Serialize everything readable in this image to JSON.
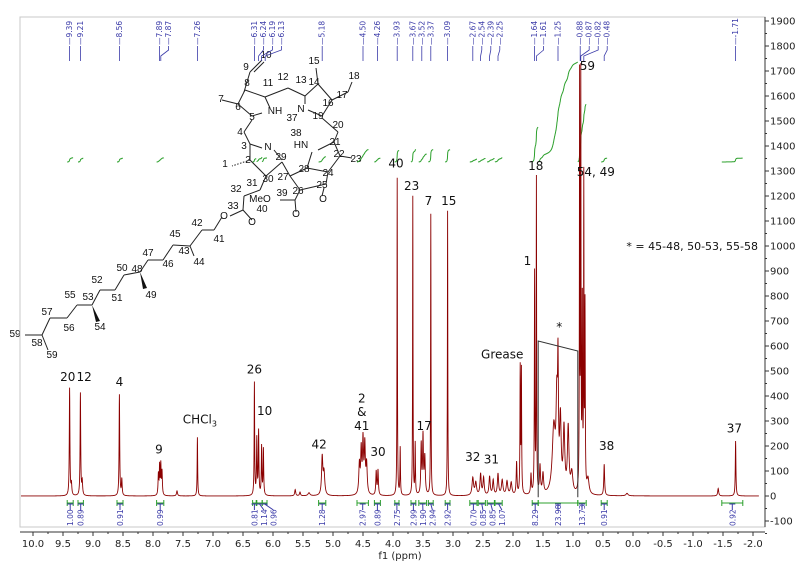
{
  "chart_data": {
    "type": "line",
    "xlabel": "f1 (ppm)",
    "ylabel": "",
    "xlim": [
      10.3,
      -2.1
    ],
    "ylim": [
      -100,
      1900
    ],
    "x_reversed": true,
    "grid": false,
    "xticks": [
      "10.0",
      "9.5",
      "9.0",
      "8.5",
      "8.0",
      "7.5",
      "7.0",
      "6.5",
      "6.0",
      "5.5",
      "5.0",
      "4.5",
      "4.0",
      "3.5",
      "3.0",
      "2.5",
      "2.0",
      "1.5",
      "1.0",
      "0.5",
      "0.0",
      "-0.5",
      "-1.0",
      "-1.5",
      "-2.0"
    ],
    "yticks": [
      "1900",
      "1800",
      "1700",
      "1600",
      "1500",
      "1400",
      "1300",
      "1200",
      "1100",
      "1000",
      "900",
      "800",
      "700",
      "600",
      "500",
      "400",
      "300",
      "200",
      "100",
      "0",
      "-100"
    ],
    "series_color": "#8b0000",
    "integral_color": "#2ca02c",
    "label_color": "#3a3aa8",
    "peaks": [
      [
        9.39,
        430,
        0.006
      ],
      [
        9.36,
        45,
        0.008
      ],
      [
        9.21,
        410,
        0.006
      ],
      [
        9.18,
        55,
        0.008
      ],
      [
        8.56,
        405,
        0.006
      ],
      [
        8.52,
        65,
        0.007
      ],
      [
        7.91,
        85,
        0.007
      ],
      [
        7.89,
        115,
        0.006
      ],
      [
        7.87,
        120,
        0.006
      ],
      [
        7.85,
        95,
        0.007
      ],
      [
        7.6,
        20,
        0.01
      ],
      [
        7.26,
        235,
        0.005
      ],
      [
        6.31,
        450,
        0.005
      ],
      [
        6.27,
        225,
        0.006
      ],
      [
        6.24,
        255,
        0.006
      ],
      [
        6.19,
        195,
        0.006
      ],
      [
        6.16,
        185,
        0.006
      ],
      [
        5.63,
        25,
        0.01
      ],
      [
        5.55,
        15,
        0.01
      ],
      [
        5.4,
        12,
        0.02
      ],
      [
        5.18,
        150,
        0.012
      ],
      [
        5.15,
        90,
        0.015
      ],
      [
        4.56,
        120,
        0.012
      ],
      [
        4.53,
        170,
        0.01
      ],
      [
        4.5,
        210,
        0.01
      ],
      [
        4.47,
        190,
        0.01
      ],
      [
        4.44,
        120,
        0.012
      ],
      [
        4.28,
        95,
        0.008
      ],
      [
        4.25,
        100,
        0.008
      ],
      [
        3.93,
        1270,
        0.004
      ],
      [
        3.88,
        190,
        0.005
      ],
      [
        3.67,
        1195,
        0.004
      ],
      [
        3.63,
        205,
        0.005
      ],
      [
        3.53,
        200,
        0.008
      ],
      [
        3.5,
        230,
        0.008
      ],
      [
        3.47,
        150,
        0.01
      ],
      [
        3.37,
        1125,
        0.004
      ],
      [
        3.09,
        1140,
        0.004
      ],
      [
        2.67,
        70,
        0.015
      ],
      [
        2.62,
        50,
        0.015
      ],
      [
        2.54,
        85,
        0.012
      ],
      [
        2.49,
        70,
        0.012
      ],
      [
        2.39,
        75,
        0.012
      ],
      [
        2.33,
        60,
        0.012
      ],
      [
        2.25,
        85,
        0.012
      ],
      [
        2.18,
        60,
        0.015
      ],
      [
        2.1,
        55,
        0.015
      ],
      [
        2.03,
        50,
        0.015
      ],
      [
        1.94,
        130,
        0.008
      ],
      [
        1.88,
        500,
        0.005
      ],
      [
        1.86,
        490,
        0.005
      ],
      [
        1.7,
        80,
        0.008
      ],
      [
        1.64,
        880,
        0.005
      ],
      [
        1.61,
        1250,
        0.004
      ],
      [
        1.55,
        110,
        0.01
      ],
      [
        1.5,
        80,
        0.012
      ],
      [
        1.32,
        260,
        0.03
      ],
      [
        1.27,
        330,
        0.015
      ],
      [
        1.25,
        430,
        0.008
      ],
      [
        1.21,
        280,
        0.015
      ],
      [
        1.15,
        250,
        0.015
      ],
      [
        1.08,
        260,
        0.015
      ],
      [
        1.02,
        80,
        0.02
      ],
      [
        0.89,
        1640,
        0.004
      ],
      [
        0.87,
        1620,
        0.004
      ],
      [
        0.845,
        760,
        0.005
      ],
      [
        0.82,
        1220,
        0.004
      ],
      [
        0.8,
        730,
        0.005
      ],
      [
        0.75,
        60,
        0.02
      ],
      [
        0.48,
        125,
        0.008
      ],
      [
        0.1,
        10,
        0.02
      ],
      [
        -1.42,
        30,
        0.01
      ],
      [
        -1.71,
        220,
        0.006
      ]
    ],
    "peak_labels": [
      "9.39",
      "9.21",
      "8.56",
      "7.89",
      "7.87",
      "7.26",
      "6.31",
      "6.24",
      "6.19",
      "6.13",
      "5.18",
      "4.50",
      "4.26",
      "3.93",
      "3.67",
      "3.52",
      "3.37",
      "3.09",
      "2.67",
      "2.54",
      "2.39",
      "2.25",
      "1.64",
      "1.61",
      "1.25",
      "0.88",
      "0.87",
      "0.82",
      "0.48",
      "-1.71"
    ],
    "integrals": [
      {
        "value": "1.00",
        "from": 9.43,
        "to": 9.33
      },
      {
        "value": "0.89",
        "from": 9.25,
        "to": 9.16
      },
      {
        "value": "0.91",
        "from": 8.6,
        "to": 8.5
      },
      {
        "value": "0.99",
        "from": 7.94,
        "to": 7.82
      },
      {
        "value": "0.81",
        "from": 6.34,
        "to": 6.28
      },
      {
        "value": "1.14",
        "from": 6.27,
        "to": 6.18
      },
      {
        "value": "0.96",
        "from": 6.18,
        "to": 6.1
      },
      {
        "value": "1.28",
        "from": 5.24,
        "to": 5.12
      },
      {
        "value": "2.97",
        "from": 4.6,
        "to": 4.41
      },
      {
        "value": "0.89",
        "from": 4.31,
        "to": 4.21
      },
      {
        "value": "2.75",
        "from": 3.97,
        "to": 3.9
      },
      {
        "value": "2.99",
        "from": 3.7,
        "to": 3.62
      },
      {
        "value": "1.90",
        "from": 3.57,
        "to": 3.44
      },
      {
        "value": "2.94",
        "from": 3.41,
        "to": 3.33
      },
      {
        "value": "2.92",
        "from": 3.13,
        "to": 3.05
      },
      {
        "value": "0.70",
        "from": 2.72,
        "to": 2.6
      },
      {
        "value": "0.85",
        "from": 2.58,
        "to": 2.46
      },
      {
        "value": "0.85",
        "from": 2.43,
        "to": 2.31
      },
      {
        "value": "1.07",
        "from": 2.3,
        "to": 2.18
      },
      {
        "value": "8.29",
        "from": 1.68,
        "to": 1.58
      },
      {
        "value": "23.98",
        "from": 1.58,
        "to": 0.92
      },
      {
        "value": "13.73",
        "from": 0.92,
        "to": 0.78
      },
      {
        "value": "0.91",
        "from": 0.53,
        "to": 0.43
      },
      {
        "value": "0.92",
        "from": -1.48,
        "to": -1.83
      }
    ],
    "annotations": [
      {
        "text": "20",
        "ppm": 9.42,
        "y": 460
      },
      {
        "text": "12",
        "ppm": 9.17,
        "y": 460
      },
      {
        "text": "4",
        "ppm": 8.56,
        "y": 440
      },
      {
        "text": "9",
        "ppm": 7.9,
        "y": 170
      },
      {
        "text": "CHCl",
        "sub": "3",
        "ppm": 7.22,
        "y": 290
      },
      {
        "text": "26",
        "ppm": 6.31,
        "y": 490
      },
      {
        "text": "10",
        "ppm": 6.14,
        "y": 325
      },
      {
        "text": "42",
        "ppm": 5.23,
        "y": 190
      },
      {
        "text": "2",
        "ppm": 4.52,
        "y": 375
      },
      {
        "text": "&",
        "ppm": 4.52,
        "y": 320
      },
      {
        "text": "41",
        "ppm": 4.52,
        "y": 265
      },
      {
        "text": "30",
        "ppm": 4.25,
        "y": 160
      },
      {
        "text": "40",
        "ppm": 3.95,
        "y": 1315
      },
      {
        "text": "23",
        "ppm": 3.69,
        "y": 1225
      },
      {
        "text": "7",
        "ppm": 3.41,
        "y": 1165
      },
      {
        "text": "15",
        "ppm": 3.07,
        "y": 1165
      },
      {
        "text": "17",
        "ppm": 3.48,
        "y": 265
      },
      {
        "text": "32",
        "ppm": 2.67,
        "y": 140
      },
      {
        "text": "31",
        "ppm": 2.36,
        "y": 130
      },
      {
        "text": "Grease",
        "ppm": 2.18,
        "y": 550
      },
      {
        "text": "1",
        "ppm": 1.76,
        "y": 925
      },
      {
        "text": "18",
        "ppm": 1.62,
        "y": 1305
      },
      {
        "text": "59",
        "ppm": 0.76,
        "y": 1705
      },
      {
        "text": "54, 49",
        "ppm": 0.62,
        "y": 1280
      },
      {
        "text": "*",
        "ppm": 1.23,
        "y": 660
      },
      {
        "text": "38",
        "ppm": 0.44,
        "y": 185
      },
      {
        "text": "37",
        "ppm": -1.69,
        "y": 255
      }
    ],
    "bracket": {
      "from": 1.58,
      "to": 0.92,
      "y_from": 620,
      "y_to": 580
    },
    "footnote": "* = 45-48, 50-53, 55-58"
  },
  "molecule": {
    "labels": [
      "10",
      "9",
      "12",
      "13",
      "15",
      "18",
      "8",
      "11",
      "14",
      "7",
      "6",
      "17",
      "16",
      "NH",
      "37",
      "N",
      "19",
      "5",
      "20",
      "38",
      "4",
      "HN",
      "21",
      "3",
      "N",
      "22",
      "23",
      "2",
      "29",
      "1",
      "27",
      "28",
      "24",
      "25",
      "30",
      "31",
      "32",
      "26",
      "39",
      "MeO",
      "40",
      "O",
      "O",
      "33",
      "O",
      "O",
      "42",
      "41",
      "45",
      "43",
      "44",
      "47",
      "46",
      "50",
      "48",
      "52",
      "49",
      "51",
      "55",
      "53",
      "57",
      "54",
      "56",
      "59",
      "58",
      "59"
    ]
  }
}
